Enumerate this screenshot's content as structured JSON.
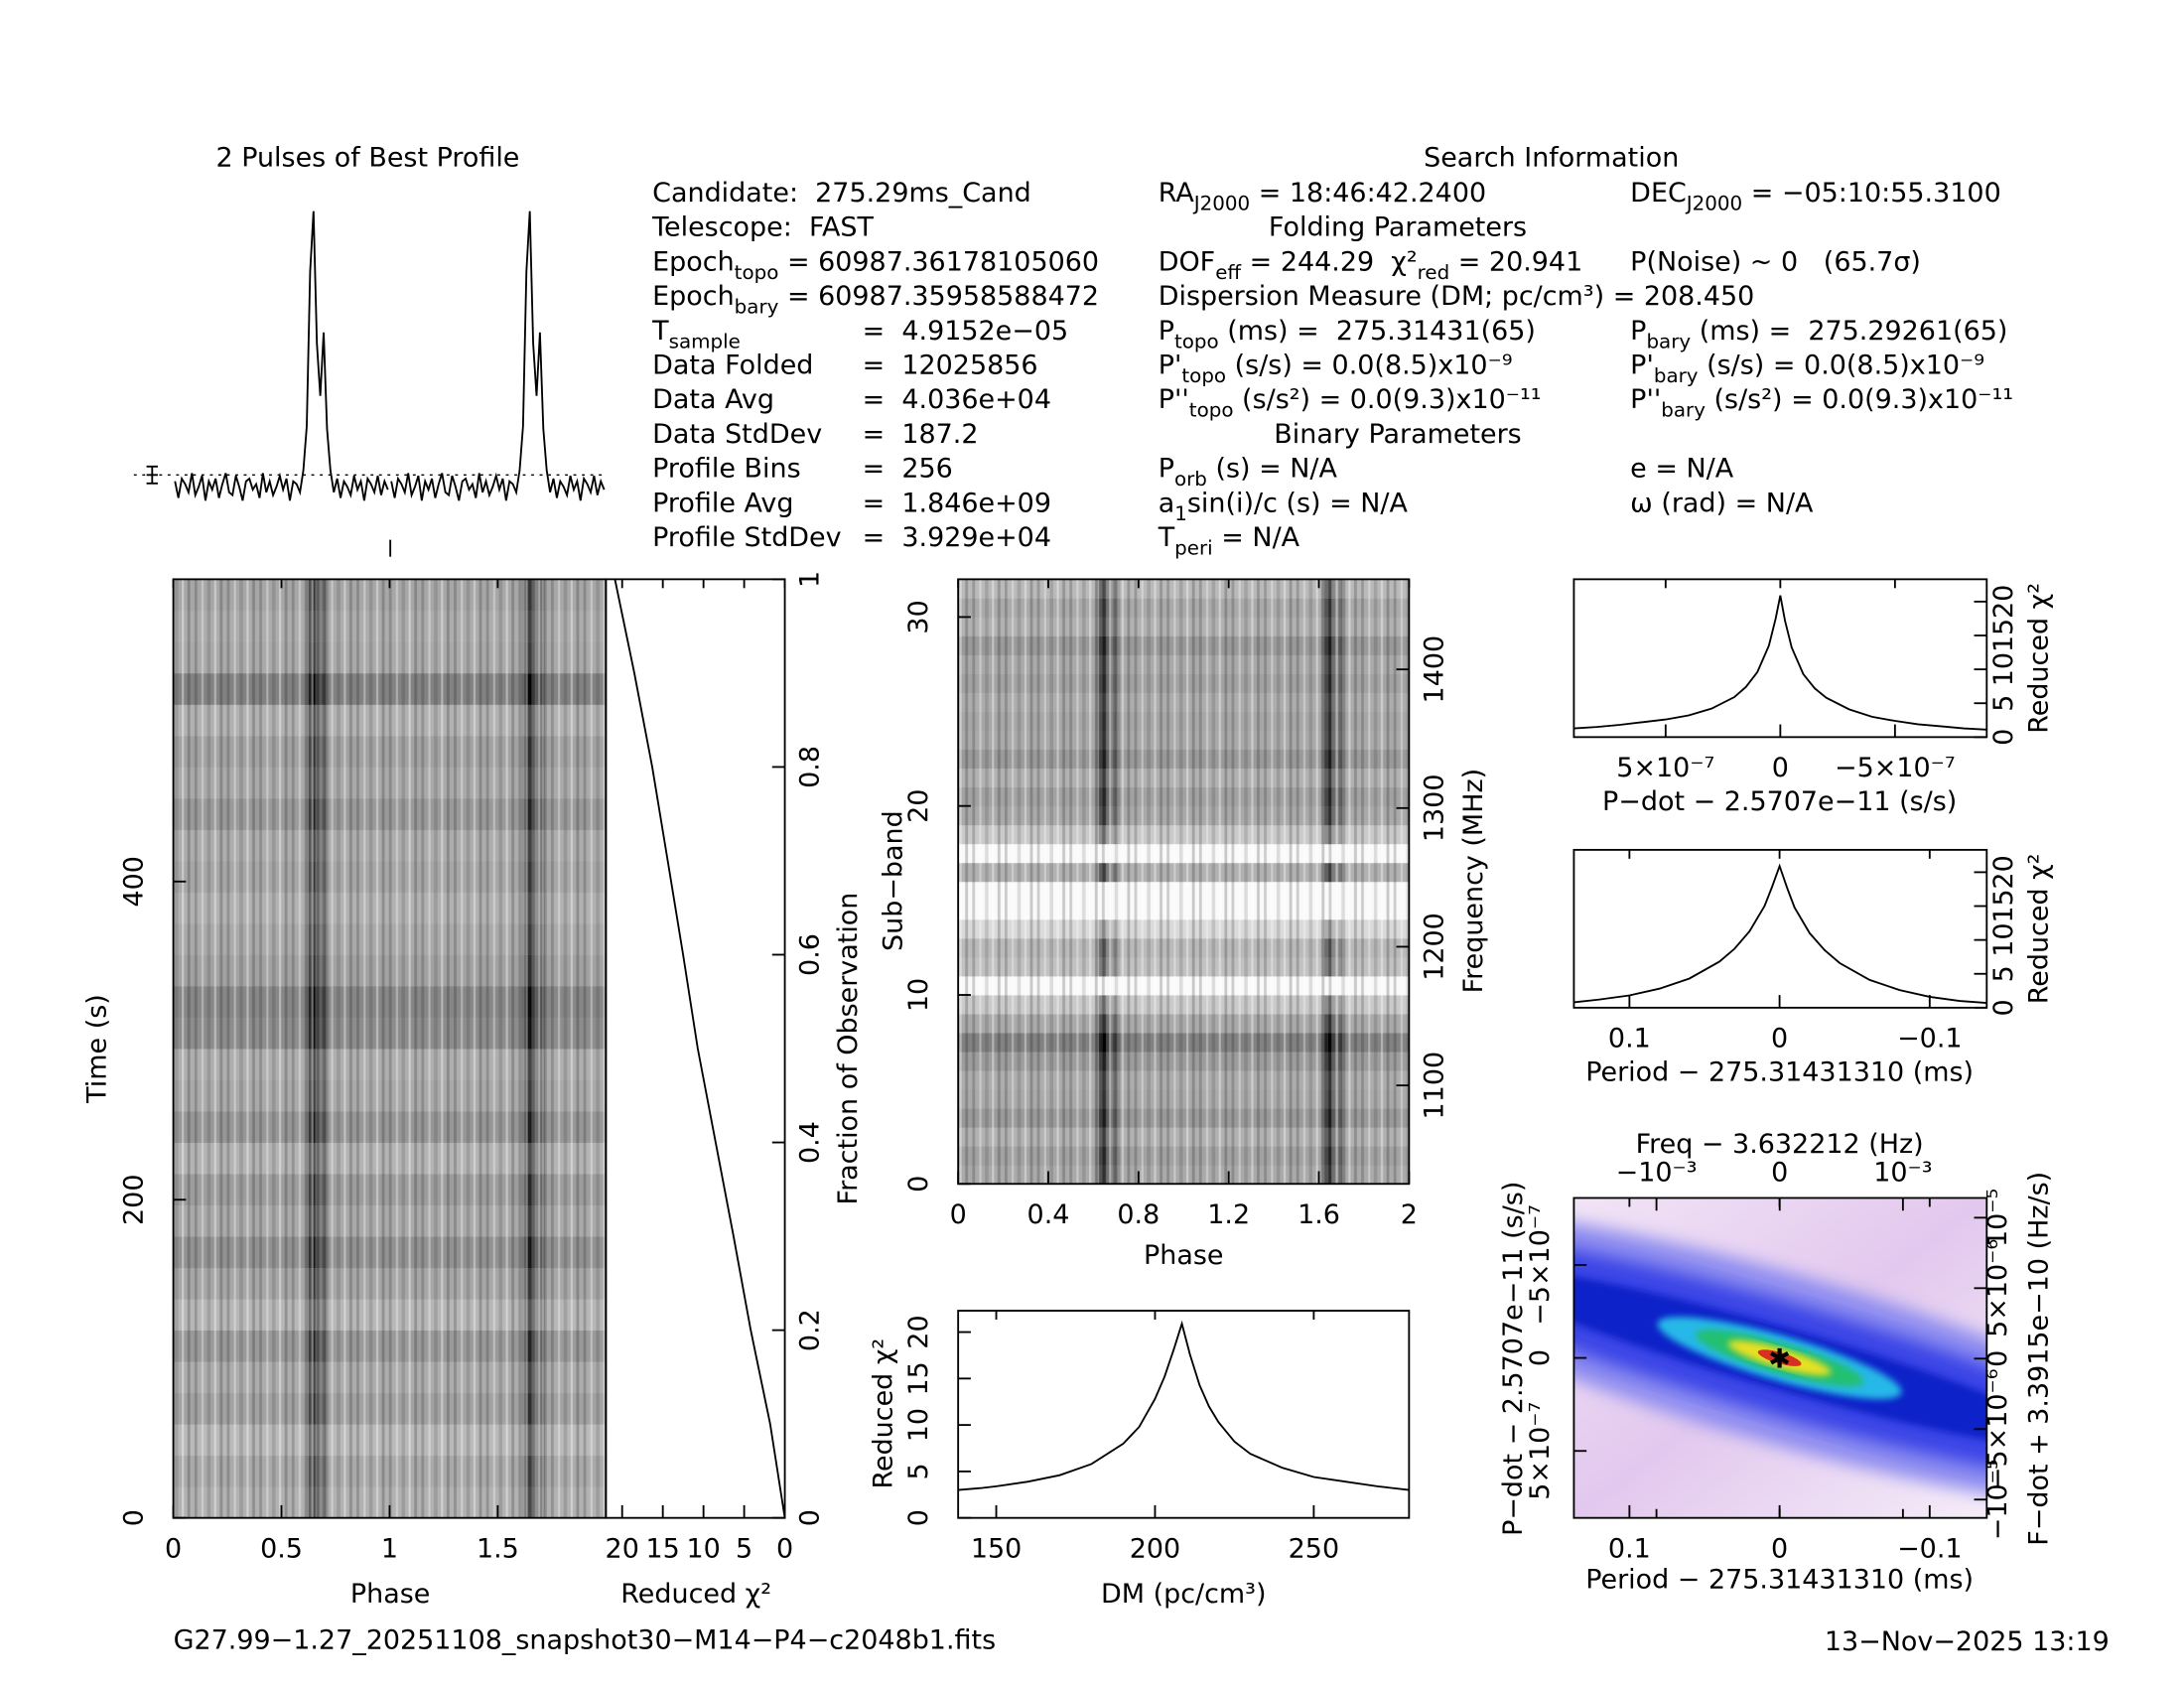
{
  "info": {
    "title": "Search Information",
    "col1": [
      {
        "label": [
          {
            "text": "Candidate:  275.29ms_Cand"
          }
        ]
      },
      {
        "label": [
          {
            "text": "Telescope:  FAST"
          }
        ]
      },
      {
        "label": [
          {
            "text": "Epoch"
          },
          {
            "sub": "topo"
          },
          {
            "text": " = 60987.36178105060"
          }
        ]
      },
      {
        "label": [
          {
            "text": "Epoch"
          },
          {
            "sub": "bary"
          },
          {
            "text": " = 60987.35958588472"
          }
        ]
      },
      {
        "label": [
          {
            "text": "T"
          },
          {
            "sub": "sample"
          }
        ],
        "value": "=  4.9152e−05"
      },
      {
        "label": [
          {
            "text": "Data Folded"
          }
        ],
        "value": "=  12025856"
      },
      {
        "label": [
          {
            "text": "Data Avg"
          }
        ],
        "value": "=  4.036e+04"
      },
      {
        "label": [
          {
            "text": "Data StdDev"
          }
        ],
        "value": "=  187.2"
      },
      {
        "label": [
          {
            "text": "Profile Bins"
          }
        ],
        "value": "=  256"
      },
      {
        "label": [
          {
            "text": "Profile Avg"
          }
        ],
        "value": "=  1.846e+09"
      },
      {
        "label": [
          {
            "text": "Profile StdDev"
          }
        ],
        "value": "=  3.929e+04"
      }
    ],
    "col2": [
      [
        {
          "text": "RA"
        },
        {
          "sub": "J2000"
        },
        {
          "text": " = 18:46:42.2400"
        }
      ],
      {
        "heading": "Folding Parameters"
      },
      [
        {
          "text": "DOF"
        },
        {
          "sub": "eff"
        },
        {
          "text": " = 244.29  χ²"
        },
        {
          "sub": "red"
        },
        {
          "text": " = 20.941"
        }
      ],
      [
        {
          "text": "Dispersion Measure (DM; pc/cm³) = 208.450"
        }
      ],
      [
        {
          "text": "P"
        },
        {
          "sub": "topo"
        },
        {
          "text": " (ms) =  275.31431(65)"
        }
      ],
      [
        {
          "text": "P'"
        },
        {
          "sub": "topo"
        },
        {
          "text": " (s/s) = 0.0(8.5)x10⁻⁹"
        }
      ],
      [
        {
          "text": "P''"
        },
        {
          "sub": "topo"
        },
        {
          "text": " (s/s²) = 0.0(9.3)x10⁻¹¹"
        }
      ],
      {
        "heading": "Binary Parameters"
      },
      [
        {
          "text": "P"
        },
        {
          "sub": "orb"
        },
        {
          "text": " (s) = N/A"
        }
      ],
      [
        {
          "text": "a"
        },
        {
          "sub": "1"
        },
        {
          "text": "sin(i)/c (s) = N/A"
        }
      ],
      [
        {
          "text": "T"
        },
        {
          "sub": "peri"
        },
        {
          "text": " = N/A"
        }
      ]
    ],
    "col3": [
      [
        {
          "text": "DEC"
        },
        {
          "sub": "J2000"
        },
        {
          "text": " = −05:10:55.3100"
        }
      ],
      [
        {
          "text": "P(Noise) ~ 0   (65.7σ)"
        }
      ],
      [
        {
          "text": "P"
        },
        {
          "sub": "bary"
        },
        {
          "text": " (ms) =  275.29261(65)"
        }
      ],
      [
        {
          "text": "P'"
        },
        {
          "sub": "bary"
        },
        {
          "text": " (s/s) = 0.0(8.5)x10⁻⁹"
        }
      ],
      [
        {
          "text": "P''"
        },
        {
          "sub": "bary"
        },
        {
          "text": " (s/s²) = 0.0(9.3)x10⁻¹¹"
        }
      ],
      [
        {
          "text": "e = N/A"
        }
      ],
      [
        {
          "text": "ω (rad) = N/A"
        }
      ]
    ]
  },
  "footer": {
    "file": "G27.99−1.27_20251108_snapshot30−M14−P4−c2048b1.fits",
    "date": "13−Nov−2025 13:19"
  },
  "chart_data": [
    {
      "type": "line",
      "title": "2 Pulses of Best Profile",
      "xlim": [
        0,
        2
      ],
      "ylim": [
        -0.1,
        1.05
      ],
      "values": [
        0.02,
        -0.04,
        0.03,
        0.01,
        -0.02,
        0.05,
        -0.03,
        0.0,
        0.04,
        -0.05,
        0.02,
        -0.01,
        0.03,
        -0.04,
        0.01,
        0.05,
        -0.02,
        -0.03,
        0.04,
        0.0,
        -0.05,
        0.02,
        0.03,
        -0.01,
        0.01,
        -0.04,
        0.05,
        -0.02,
        0.02,
        -0.03,
        0.0,
        0.04,
        -0.01,
        0.03,
        -0.05,
        0.02,
        0.01,
        -0.02,
        0.06,
        0.22,
        0.78,
        1.0,
        0.52,
        0.33,
        0.56,
        0.21,
        0.06,
        -0.02,
        0.03,
        -0.04,
        0.02,
        0.0,
        -0.03,
        0.04,
        -0.01,
        0.02,
        -0.05,
        0.03,
        0.01,
        -0.02,
        0.04,
        -0.03,
        0.02,
        -0.01
      ]
    },
    {
      "type": "heatmap",
      "xlabel": "Phase",
      "ylabel": "Time (s)",
      "xlim": [
        0,
        2
      ],
      "xticks": [
        0,
        0.5,
        1,
        1.5
      ],
      "ylim": [
        0,
        590
      ],
      "yticks": [
        0,
        200,
        400
      ],
      "values": [
        0.45,
        0.5,
        0.4,
        0.55,
        0.48,
        0.6,
        0.42,
        0.52,
        0.65,
        0.5,
        0.58,
        0.44,
        0.62,
        0.5,
        0.47,
        0.68,
        0.72,
        0.55,
        0.5,
        0.45,
        0.52,
        0.48,
        0.6,
        0.5,
        0.55,
        0.45,
        0.75,
        0.5,
        0.48,
        0.52
      ]
    },
    {
      "type": "line",
      "xlabel": "Reduced χ²",
      "ylabel": "Fraction of Observation",
      "xlim": [
        22,
        0
      ],
      "xticks": [
        20,
        15,
        10,
        5,
        0
      ],
      "ylim": [
        0,
        1
      ],
      "yticks": [
        0,
        0.2,
        0.4,
        0.6,
        0.8,
        1
      ],
      "y": [
        0,
        0.1,
        0.2,
        0.3,
        0.4,
        0.5,
        0.6,
        0.7,
        0.8,
        0.9,
        1
      ],
      "values": [
        0,
        1.8,
        4.2,
        6.3,
        8.5,
        10.7,
        12.5,
        14.4,
        16.3,
        18.5,
        20.9
      ]
    },
    {
      "type": "heatmap",
      "xlabel": "Phase",
      "ylabel": "Sub−band",
      "y2label": "Frequency (MHz)",
      "xlim": [
        0,
        2
      ],
      "xticks": [
        0,
        0.4,
        0.8,
        1.2,
        1.6,
        2
      ],
      "ylim": [
        0,
        32
      ],
      "yticks": [
        0,
        10,
        20,
        30
      ],
      "y2lim": [
        1029,
        1465
      ],
      "y2ticks": [
        1100,
        1200,
        1300,
        1400
      ],
      "values": [
        0.5,
        0.55,
        0.45,
        0.6,
        0.5,
        0.48,
        0.58,
        0.75,
        0.5,
        0.3,
        0.0,
        0.35,
        0.4,
        0.2,
        0.0,
        0.0,
        0.45,
        0.0,
        0.3,
        0.5,
        0.55,
        0.45,
        0.6,
        0.5,
        0.52,
        0.48,
        0.55,
        0.5,
        0.6,
        0.45,
        0.5,
        0.4
      ]
    },
    {
      "type": "line",
      "xlabel": "DM (pc/cm³)",
      "ylabel": "Reduced χ²",
      "xlim": [
        138,
        280
      ],
      "xticks": [
        150,
        200,
        250
      ],
      "ylim": [
        0,
        22.3
      ],
      "yticks": [
        0,
        5,
        10,
        15,
        20
      ],
      "x": [
        138,
        145,
        150,
        160,
        170,
        180,
        190,
        195,
        200,
        203,
        206,
        208.45,
        211,
        214,
        217,
        220,
        225,
        230,
        240,
        250,
        260,
        270,
        280
      ],
      "values": [
        3.0,
        3.2,
        3.4,
        3.9,
        4.6,
        5.8,
        8.0,
        9.8,
        12.8,
        15.2,
        18.2,
        20.9,
        17.6,
        14.3,
        12.0,
        10.3,
        8.2,
        6.9,
        5.4,
        4.4,
        3.9,
        3.4,
        3.0
      ]
    },
    {
      "type": "line",
      "xlabel": "P−dot − 2.5707e−11 (s/s)",
      "ylabel": "Reduced χ²",
      "xlim": [
        9e-07,
        -9e-07
      ],
      "xticks": [
        {
          "value": 5e-07,
          "label": "5×10⁻⁷"
        },
        0,
        {
          "value": -5e-07,
          "label": "−5×10⁻⁷"
        }
      ],
      "ylim": [
        0,
        23.3
      ],
      "yticks": [
        0,
        5,
        10,
        15,
        20
      ],
      "x": [
        9e-07,
        8e-07,
        7e-07,
        6e-07,
        5e-07,
        4e-07,
        3e-07,
        2e-07,
        1.5e-07,
        1e-07,
        5e-08,
        2e-08,
        0,
        -2e-08,
        -5e-08,
        -1e-07,
        -1.5e-07,
        -2e-07,
        -3e-07,
        -4e-07,
        -5e-07,
        -6e-07,
        -7e-07,
        -8e-07,
        -9e-07
      ],
      "values": [
        1.3,
        1.5,
        1.8,
        2.2,
        2.6,
        3.2,
        4.2,
        5.9,
        7.4,
        9.6,
        13.5,
        17.5,
        20.9,
        17.2,
        13.2,
        9.3,
        7.2,
        5.8,
        4.1,
        3.0,
        2.4,
        1.9,
        1.6,
        1.3,
        1.1
      ]
    },
    {
      "type": "line",
      "xlabel": "Period − 275.31431310 (ms)",
      "ylabel": "Reduced χ²",
      "xlim": [
        0.137,
        -0.138
      ],
      "xticks": [
        0.1,
        0,
        {
          "value": -0.1,
          "label": "−0.1"
        }
      ],
      "ylim": [
        0,
        23.3
      ],
      "yticks": [
        0,
        5,
        10,
        15,
        20
      ],
      "x": [
        0.137,
        0.12,
        0.1,
        0.08,
        0.06,
        0.04,
        0.03,
        0.02,
        0.01,
        0.005,
        0,
        -0.005,
        -0.01,
        -0.02,
        -0.03,
        -0.04,
        -0.06,
        -0.08,
        -0.1,
        -0.12,
        -0.138
      ],
      "values": [
        0.8,
        1.2,
        1.8,
        2.8,
        4.3,
        6.8,
        8.7,
        11.3,
        15.0,
        17.8,
        20.9,
        17.7,
        14.8,
        11.0,
        8.5,
        6.6,
        4.1,
        2.6,
        1.6,
        1.0,
        0.7
      ]
    },
    {
      "type": "image",
      "xlabel": "Period − 275.31431310 (ms)",
      "ylabel": "P−dot − 2.5707e−11 (s/s)",
      "x2label": "Freq − 3.632212 (Hz)",
      "y2label": "F−dot + 3.3915e−10 (Hz/s)",
      "xlim": [
        0.137,
        -0.138
      ],
      "xticks": [
        0.1,
        0,
        {
          "value": -0.1,
          "label": "−0.1"
        }
      ],
      "ylim": [
        8.6e-07,
        -8.6e-07
      ],
      "yticks": [
        {
          "value": 5e-07,
          "label": "5×10⁻⁷"
        },
        0,
        {
          "value": -5e-07,
          "label": "−5×10⁻⁷"
        }
      ],
      "x2lim": [
        -0.00167,
        0.00168
      ],
      "x2ticks": [
        {
          "value": -0.001,
          "label": "−10⁻³"
        },
        0,
        {
          "value": 0.001,
          "label": "10⁻³"
        }
      ],
      "y2lim": [
        -1.13e-05,
        1.14e-05
      ],
      "y2ticks": [
        {
          "value": -1e-05,
          "label": "−10⁻⁵"
        },
        {
          "value": -5e-06,
          "label": "−5×10⁻⁶"
        },
        0,
        {
          "value": 5e-06,
          "label": "5×10⁻⁶"
        },
        {
          "value": 1e-05,
          "label": "10⁻⁵"
        }
      ]
    }
  ]
}
